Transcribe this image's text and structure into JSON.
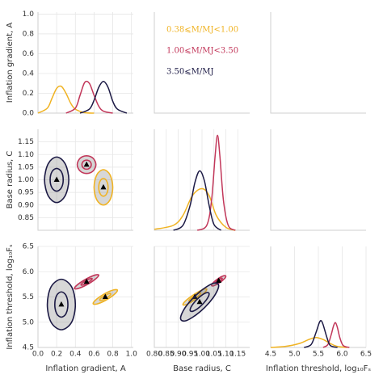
{
  "chart_data": {
    "type": "corner",
    "params": [
      {
        "label": "Inflation gradient, A",
        "lim": [
          0,
          1.02
        ],
        "ticks": [
          {
            "value": 0,
            "label": "0.0"
          },
          0.2,
          0.4,
          0.6,
          0.8,
          {
            "value": 1,
            "label": "1.0"
          }
        ]
      },
      {
        "label": "Base radius, C",
        "lim": [
          0.8,
          1.2
        ],
        "ticks": [
          {
            "value": 0.8,
            "label": "0.80"
          },
          0.85,
          {
            "value": 0.9,
            "label": "0.90"
          },
          0.95,
          {
            "value": 1,
            "label": "1.00"
          },
          1.05,
          {
            "value": 1.1,
            "label": "1.10"
          },
          1.15
        ]
      },
      {
        "label": "Inflation threshold, log₁₀Fₛ",
        "lim": [
          4.5,
          6.5
        ],
        "ticks": [
          4.5,
          {
            "value": 5,
            "label": "5.0"
          },
          5.5,
          {
            "value": 6,
            "label": "6.0"
          },
          6.5
        ]
      }
    ],
    "series": [
      {
        "name": "0.38⩽M/MJ<1.00",
        "color": "#f0b323",
        "marginals": [
          {
            "x": [
              0,
              0.1,
              0.15,
              0.2,
              0.25,
              0.3,
              0.35,
              0.4,
              0.5,
              0.6
            ],
            "y": [
              0,
              0.05,
              0.15,
              0.25,
              0.27,
              0.2,
              0.1,
              0.04,
              0.005,
              0
            ]
          },
          {
            "x": [
              0.8,
              0.88,
              0.92,
              0.96,
              1.0,
              1.03,
              1.06,
              1.1,
              1.14
            ],
            "y": [
              0.01,
              0.05,
              0.15,
              0.35,
              0.42,
              0.35,
              0.15,
              0.03,
              0
            ]
          },
          {
            "x": [
              4.5,
              4.8,
              5.1,
              5.3,
              5.45,
              5.6,
              5.75,
              5.9,
              6.1
            ],
            "y": [
              0,
              0.01,
              0.04,
              0.08,
              0.1,
              0.08,
              0.04,
              0.01,
              0
            ]
          }
        ],
        "pairs": [
          {
            "median": [
              0.7,
              0.97
            ],
            "contours": [
              {
                "x": [
                  0.8,
                  0.77,
                  0.7,
                  0.63,
                  0.6,
                  0.63,
                  0.7,
                  0.77
                ],
                "y": [
                  0.97,
                  1.02,
                  1.04,
                  1.02,
                  0.97,
                  0.92,
                  0.9,
                  0.92
                ]
              },
              {
                "x": [
                  0.75,
                  0.735,
                  0.7,
                  0.665,
                  0.65,
                  0.665,
                  0.7,
                  0.735
                ],
                "y": [
                  0.97,
                  0.995,
                  1.005,
                  0.995,
                  0.97,
                  0.945,
                  0.935,
                  0.945
                ]
              }
            ]
          },
          {
            "median": [
              0.72,
              5.5
            ],
            "contours": [
              {
                "x": [
                  0.85,
                  0.81,
                  0.72,
                  0.63,
                  0.59,
                  0.63,
                  0.72,
                  0.81
                ],
                "y": [
                  5.63,
                  5.64,
                  5.57,
                  5.46,
                  5.37,
                  5.36,
                  5.43,
                  5.54
                ]
              },
              {
                "x": [
                  0.78,
                  0.763,
                  0.72,
                  0.677,
                  0.66,
                  0.677,
                  0.72,
                  0.763
                ],
                "y": [
                  5.56,
                  5.568,
                  5.535,
                  5.482,
                  5.44,
                  5.432,
                  5.465,
                  5.518
                ]
              }
            ]
          },
          {
            "median": [
              0.97,
              5.5
            ],
            "contours": [
              {
                "x": [
                  1.02,
                  1.006,
                  0.97,
                  0.934,
                  0.92,
                  0.934,
                  0.97,
                  1.006
                ],
                "y": [
                  5.65,
                  5.651,
                  5.56,
                  5.435,
                  5.35,
                  5.349,
                  5.44,
                  5.565
                ]
              },
              {
                "x": [
                  0.995,
                  0.988,
                  0.97,
                  0.952,
                  0.945,
                  0.952,
                  0.97,
                  0.988
                ],
                "y": [
                  5.575,
                  5.575,
                  5.53,
                  5.467,
                  5.425,
                  5.425,
                  5.47,
                  5.533
                ]
              }
            ]
          }
        ]
      },
      {
        "name": "1.00⩽M/MJ<3.50",
        "color": "#c2375a",
        "marginals": [
          {
            "x": [
              0.3,
              0.4,
              0.45,
              0.5,
              0.55,
              0.6,
              0.65,
              0.7,
              0.8
            ],
            "y": [
              0,
              0.05,
              0.18,
              0.31,
              0.3,
              0.18,
              0.07,
              0.02,
              0
            ]
          },
          {
            "x": [
              0.98,
              1.02,
              1.04,
              1.055,
              1.065,
              1.075,
              1.09,
              1.11,
              1.14
            ],
            "y": [
              0,
              0.05,
              0.3,
              0.75,
              0.96,
              0.75,
              0.3,
              0.05,
              0
            ]
          },
          {
            "x": [
              5.6,
              5.7,
              5.77,
              5.82,
              5.86,
              5.9,
              5.95,
              6.02,
              6.15
            ],
            "y": [
              0,
              0.03,
              0.13,
              0.22,
              0.25,
              0.2,
              0.1,
              0.02,
              0
            ]
          }
        ],
        "pairs": [
          {
            "median": [
              0.52,
              1.06
            ],
            "contours": [
              {
                "x": [
                  0.62,
                  0.59,
                  0.52,
                  0.45,
                  0.42,
                  0.45,
                  0.52,
                  0.59
                ],
                "y": [
                  1.06,
                  1.085,
                  1.095,
                  1.085,
                  1.06,
                  1.035,
                  1.025,
                  1.035
                ]
              },
              {
                "x": [
                  0.57,
                  0.555,
                  0.52,
                  0.485,
                  0.47,
                  0.485,
                  0.52,
                  0.555
                ],
                "y": [
                  1.06,
                  1.073,
                  1.078,
                  1.073,
                  1.06,
                  1.047,
                  1.042,
                  1.047
                ]
              }
            ]
          },
          {
            "median": [
              0.52,
              5.8
            ],
            "contours": [
              {
                "x": [
                  0.65,
                  0.61,
                  0.52,
                  0.43,
                  0.39,
                  0.43,
                  0.52,
                  0.61
                ],
                "y": [
                  5.93,
                  5.933,
                  5.86,
                  5.753,
                  5.67,
                  5.667,
                  5.74,
                  5.847
                ]
              },
              {
                "x": [
                  0.58,
                  0.563,
                  0.52,
                  0.477,
                  0.46,
                  0.477,
                  0.52,
                  0.563
                ],
                "y": [
                  5.86,
                  5.864,
                  5.83,
                  5.778,
                  5.74,
                  5.736,
                  5.77,
                  5.822
                ]
              }
            ]
          },
          {
            "median": [
              1.07,
              5.82
            ],
            "contours": [
              {
                "x": [
                  1.1,
                  1.091,
                  1.07,
                  1.049,
                  1.04,
                  1.049,
                  1.07,
                  1.091
                ],
                "y": [
                  5.91,
                  5.919,
                  5.87,
                  5.793,
                  5.73,
                  5.721,
                  5.77,
                  5.847
                ]
              },
              {
                "x": [
                  1.085,
                  1.081,
                  1.07,
                  1.059,
                  1.055,
                  1.059,
                  1.07,
                  1.081
                ],
                "y": [
                  5.865,
                  5.87,
                  5.845,
                  5.806,
                  5.775,
                  5.77,
                  5.795,
                  5.834
                ]
              }
            ]
          }
        ]
      },
      {
        "name": "3.50⩽M/MJ",
        "color": "#1c1a45",
        "marginals": [
          {
            "x": [
              0.45,
              0.55,
              0.6,
              0.65,
              0.7,
              0.75,
              0.8,
              0.85,
              0.95
            ],
            "y": [
              0,
              0.04,
              0.13,
              0.26,
              0.32,
              0.26,
              0.12,
              0.04,
              0
            ]
          },
          {
            "x": [
              0.88,
              0.92,
              0.95,
              0.97,
              0.99,
              1.01,
              1.03,
              1.05,
              1.08
            ],
            "y": [
              0,
              0.05,
              0.25,
              0.48,
              0.6,
              0.5,
              0.25,
              0.06,
              0
            ]
          },
          {
            "x": [
              5.2,
              5.35,
              5.45,
              5.52,
              5.56,
              5.6,
              5.68,
              5.75,
              5.9
            ],
            "y": [
              0,
              0.03,
              0.15,
              0.25,
              0.27,
              0.23,
              0.1,
              0.02,
              0
            ]
          }
        ],
        "pairs": [
          {
            "median": [
              0.2,
              1.0
            ],
            "contours": [
              {
                "x": [
                  0.33,
                  0.29,
                  0.2,
                  0.11,
                  0.07,
                  0.11,
                  0.2,
                  0.29
                ],
                "y": [
                  1.0,
                  1.064,
                  1.09,
                  1.064,
                  1.0,
                  0.936,
                  0.91,
                  0.936
                ]
              },
              {
                "x": [
                  0.27,
                  0.25,
                  0.2,
                  0.15,
                  0.13,
                  0.15,
                  0.2,
                  0.25
                ],
                "y": [
                  1.0,
                  1.032,
                  1.045,
                  1.032,
                  1.0,
                  0.968,
                  0.955,
                  0.968
                ]
              }
            ]
          },
          {
            "median": [
              0.25,
              5.35
            ],
            "contours": [
              {
                "x": [
                  0.4,
                  0.36,
                  0.25,
                  0.14,
                  0.1,
                  0.14,
                  0.25,
                  0.36
                ],
                "y": [
                  5.35,
                  5.7,
                  5.85,
                  5.7,
                  5.35,
                  5.0,
                  4.85,
                  5.0
                ]
              },
              {
                "x": [
                  0.32,
                  0.3,
                  0.25,
                  0.2,
                  0.18,
                  0.2,
                  0.25,
                  0.3
                ],
                "y": [
                  5.35,
                  5.53,
                  5.6,
                  5.53,
                  5.35,
                  5.17,
                  5.1,
                  5.17
                ]
              }
            ]
          },
          {
            "median": [
              0.99,
              5.4
            ],
            "contours": [
              {
                "x": [
                  1.07,
                  1.047,
                  0.99,
                  0.933,
                  0.91,
                  0.933,
                  0.99,
                  1.047
                ],
                "y": [
                  5.72,
                  5.77,
                  5.6,
                  5.314,
                  5.08,
                  5.03,
                  5.2,
                  5.486
                ]
              },
              {
                "x": [
                  1.03,
                  1.018,
                  0.99,
                  0.962,
                  0.95,
                  0.962,
                  0.99,
                  1.018
                ],
                "y": [
                  5.56,
                  5.583,
                  5.5,
                  5.359,
                  5.24,
                  5.217,
                  5.3,
                  5.441
                ]
              }
            ]
          }
        ]
      }
    ]
  }
}
